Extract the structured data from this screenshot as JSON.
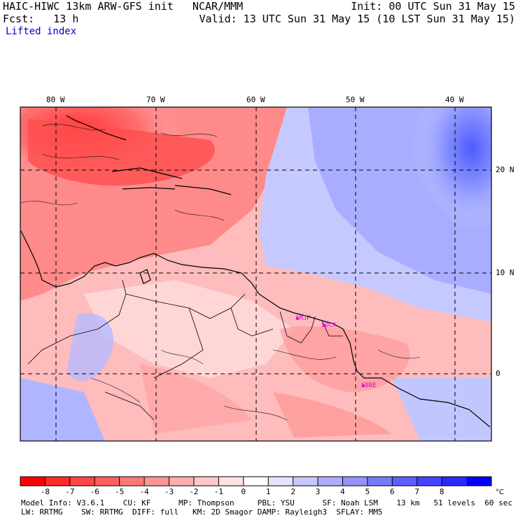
{
  "header": {
    "model_title": "HAIC-HIWC 13km ARW-GFS init",
    "center": "NCAR/MMM",
    "fcst_label": "Fcst:",
    "fcst_value": "13 h",
    "init": "Init: 00 UTC Sun 31 May 15",
    "valid": "Valid: 13 UTC Sun 31 May 15 (10 LST Sun 31 May 15)",
    "field": "Lifted index"
  },
  "longitude_labels": [
    "80 W",
    "70 W",
    "60 W",
    "50 W",
    "40 W"
  ],
  "latitude_labels": [
    "20 N",
    "10 N",
    "0"
  ],
  "station_labels": [
    "SMJP",
    "SOCA",
    "SBBE"
  ],
  "colorbar": {
    "ticks": [
      "-8",
      "-7",
      "-6",
      "-5",
      "-4",
      "-3",
      "-2",
      "-1",
      "0",
      "1",
      "2",
      "3",
      "4",
      "5",
      "6",
      "7",
      "8"
    ],
    "unit": "°C",
    "colors": [
      "#ff0000",
      "#ff2a2a",
      "#ff4444",
      "#ff5e5e",
      "#ff7878",
      "#ff9393",
      "#ffadad",
      "#ffc8c8",
      "#ffe3e3",
      "#ffffff",
      "#e3e3ff",
      "#c8c8ff",
      "#adadff",
      "#9393ff",
      "#7878ff",
      "#5e5eff",
      "#4444ff",
      "#2a2aff",
      "#0000ff"
    ]
  },
  "model_info": {
    "line1": "Model Info: V3.6.1    CU: KF      MP: Thompson     PBL: YSU      SF: Noah LSM    13 km   51 levels  60 sec",
    "line2": "LW: RRTMG    SW: RRTMG  DIFF: full   KM: 2D Smagor DAMP: Rayleigh3  SFLAY: MM5"
  }
}
